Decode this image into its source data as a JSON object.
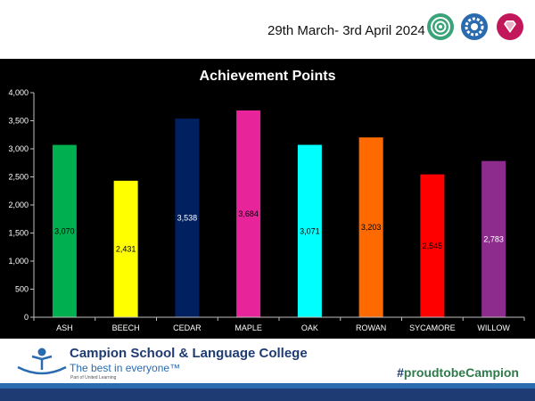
{
  "header": {
    "date_range": "29th March- 3rd April 2024",
    "badges": [
      {
        "icon": "target-rings-icon",
        "color": "#3aa37a"
      },
      {
        "icon": "gear-head-icon",
        "color": "#2a6bb0"
      },
      {
        "icon": "diamond-icon",
        "color": "#c2185b"
      }
    ]
  },
  "chart_data": {
    "type": "bar",
    "title": "Achievement Points",
    "xlabel": "",
    "ylabel": "",
    "categories": [
      "ASH",
      "BEECH",
      "CEDAR",
      "MAPLE",
      "OAK",
      "ROWAN",
      "SYCAMORE",
      "WILLOW"
    ],
    "values": [
      3070,
      2431,
      3538,
      3684,
      3071,
      3203,
      2545,
      2783
    ],
    "data_labels": [
      "3,070",
      "2,431",
      "3,538",
      "3,684",
      "3,071",
      "3,203",
      "2,545",
      "2,783"
    ],
    "colors": [
      "#00b050",
      "#ffff00",
      "#002060",
      "#e8249b",
      "#00ffff",
      "#ff6a00",
      "#ff0000",
      "#8e2c8e"
    ],
    "label_colors": [
      "#000000",
      "#000000",
      "#ffffff",
      "#000000",
      "#000000",
      "#000000",
      "#000000",
      "#ffffff"
    ],
    "ylim": [
      0,
      4000
    ],
    "yticks": [
      0,
      500,
      1000,
      1500,
      2000,
      2500,
      3000,
      3500,
      4000
    ],
    "ytick_labels": [
      "0",
      "500",
      "1,000",
      "1,500",
      "2,000",
      "2,500",
      "3,000",
      "3,500",
      "4,000"
    ],
    "grid": false,
    "legend": "none",
    "background": "#000000"
  },
  "footer": {
    "school_name": "Campion School & Language College",
    "tagline": "The best in everyone™",
    "sub_tagline": "Part of United Learning",
    "hashtag_prefix": "#",
    "hashtag_text": "proudtobeCampion"
  }
}
